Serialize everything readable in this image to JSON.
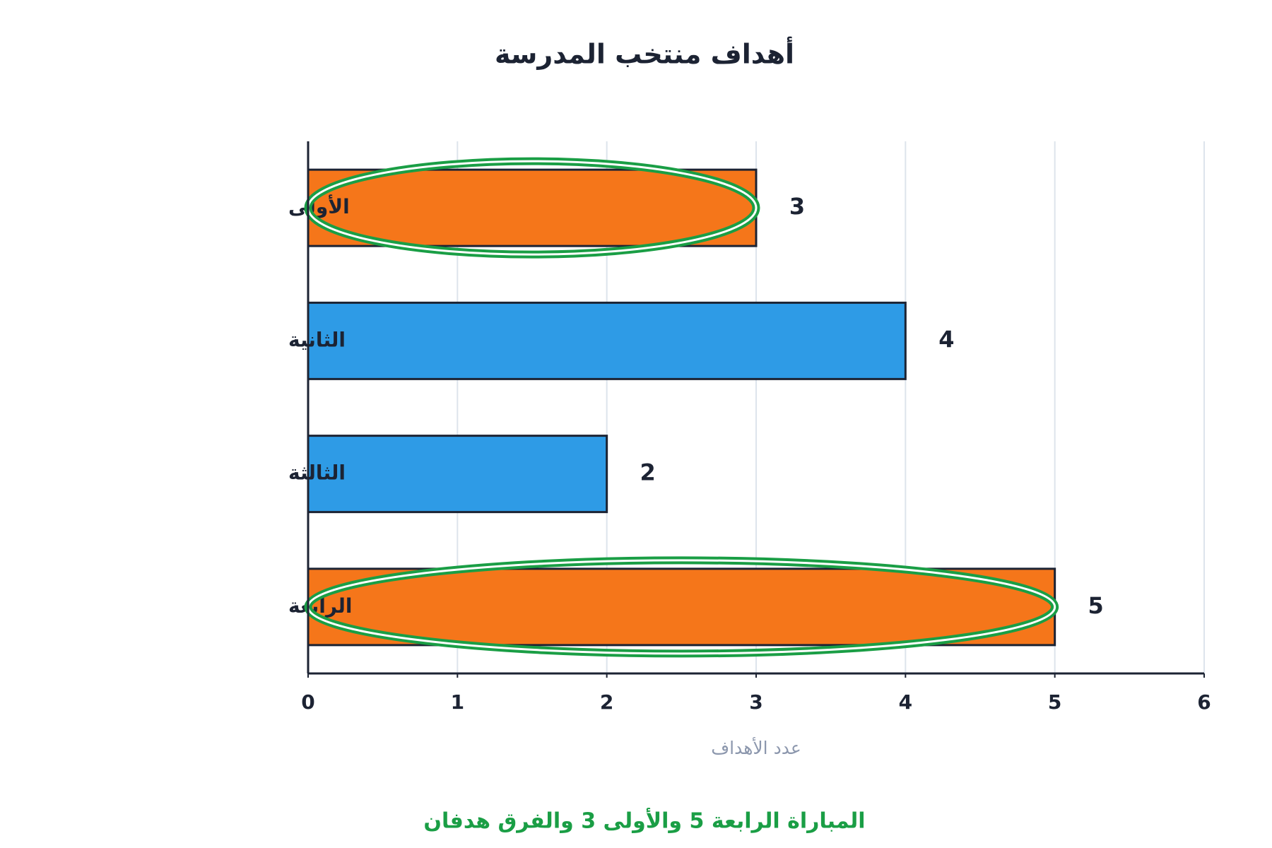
{
  "chart_data": {
    "type": "bar",
    "orientation": "horizontal",
    "title": "أهداف منتخب المدرسة",
    "categories": [
      "الأولى",
      "الثانية",
      "الثالثة",
      "الرابعة"
    ],
    "values": [
      3,
      4,
      2,
      5
    ],
    "colors": [
      "#f5761a",
      "#2e9be6",
      "#2e9be6",
      "#f5761a"
    ],
    "xlim": [
      0,
      6
    ],
    "xticks": [
      0,
      1,
      2,
      3,
      4,
      5,
      6
    ],
    "x_label": "عدد الأهداف",
    "grid": true,
    "highlight": [
      0,
      3
    ],
    "highlight_color": "#1a9e45",
    "annotation": "المباراة الرابعة 5 والأولى 3 والفرق هدفان"
  }
}
